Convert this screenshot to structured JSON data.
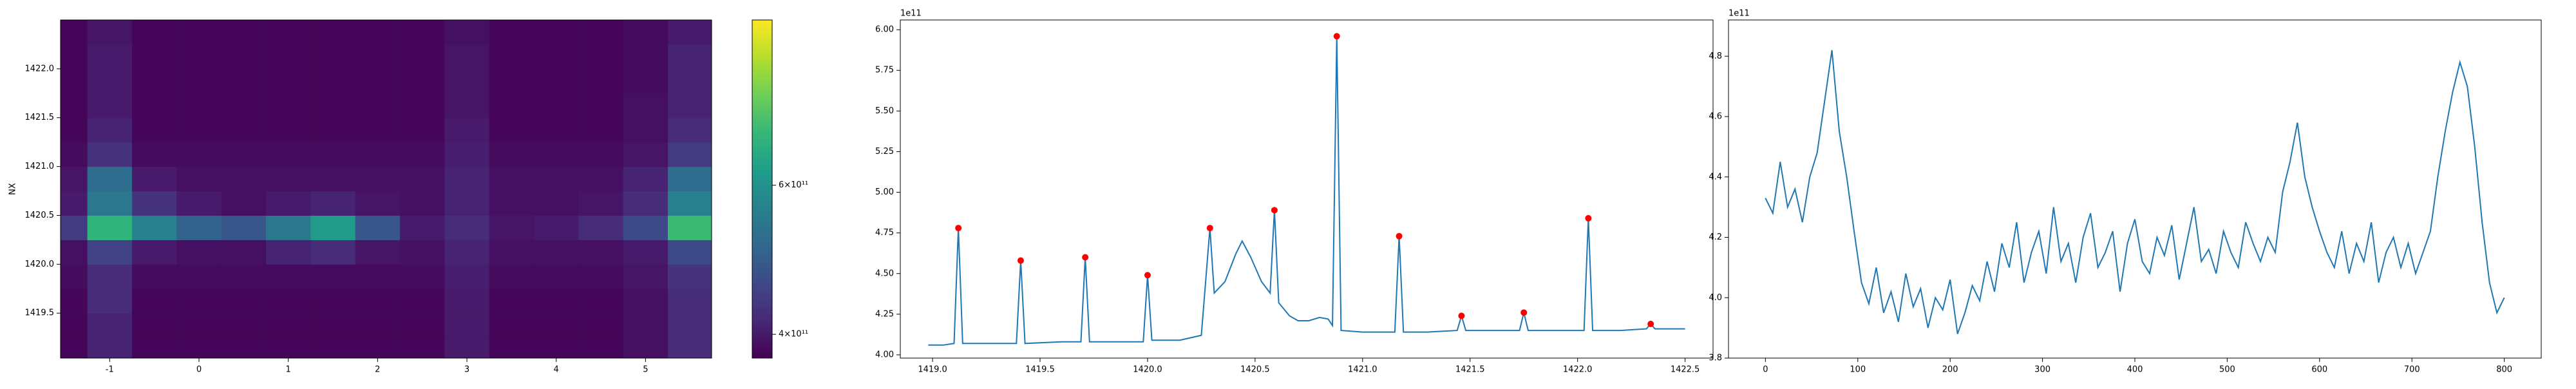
{
  "chart_data": [
    {
      "type": "heatmap",
      "ylabel": "NX",
      "colormap": "viridis",
      "x": [
        -1.5,
        -1.0,
        -0.5,
        0.0,
        0.5,
        1.0,
        1.5,
        2.0,
        2.5,
        3.0,
        3.5,
        4.0,
        4.5,
        5.0,
        5.5
      ],
      "y": [
        1419.125,
        1419.375,
        1419.625,
        1419.875,
        1420.125,
        1420.375,
        1420.625,
        1420.875,
        1421.125,
        1421.375,
        1421.625,
        1421.875,
        1422.125,
        1422.375
      ],
      "z": [
        [
          380000000000.0,
          410000000000.0,
          380000000000.0,
          380000000000.0,
          380000000000.0,
          380000000000.0,
          380000000000.0,
          380000000000.0,
          380000000000.0,
          400000000000.0,
          380000000000.0,
          380000000000.0,
          380000000000.0,
          390000000000.0,
          420000000000.0
        ],
        [
          380000000000.0,
          410000000000.0,
          380000000000.0,
          380000000000.0,
          380000000000.0,
          380000000000.0,
          380000000000.0,
          380000000000.0,
          380000000000.0,
          400000000000.0,
          380000000000.0,
          380000000000.0,
          380000000000.0,
          390000000000.0,
          420000000000.0
        ],
        [
          380000000000.0,
          420000000000.0,
          380000000000.0,
          380000000000.0,
          380000000000.0,
          380000000000.0,
          380000000000.0,
          380000000000.0,
          380000000000.0,
          400000000000.0,
          380000000000.0,
          380000000000.0,
          380000000000.0,
          390000000000.0,
          420000000000.0
        ],
        [
          385000000000.0,
          420000000000.0,
          385000000000.0,
          385000000000.0,
          385000000000.0,
          385000000000.0,
          385000000000.0,
          385000000000.0,
          385000000000.0,
          405000000000.0,
          385000000000.0,
          385000000000.0,
          385000000000.0,
          395000000000.0,
          430000000000.0
        ],
        [
          390000000000.0,
          450000000000.0,
          400000000000.0,
          390000000000.0,
          390000000000.0,
          410000000000.0,
          420000000000.0,
          395000000000.0,
          390000000000.0,
          410000000000.0,
          390000000000.0,
          390000000000.0,
          390000000000.0,
          400000000000.0,
          460000000000.0
        ],
        [
          440000000000.0,
          680000000000.0,
          560000000000.0,
          500000000000.0,
          480000000000.0,
          540000000000.0,
          620000000000.0,
          480000000000.0,
          400000000000.0,
          420000000000.0,
          395000000000.0,
          400000000000.0,
          420000000000.0,
          460000000000.0,
          700000000000.0
        ],
        [
          400000000000.0,
          540000000000.0,
          430000000000.0,
          400000000000.0,
          390000000000.0,
          400000000000.0,
          410000000000.0,
          395000000000.0,
          390000000000.0,
          410000000000.0,
          390000000000.0,
          390000000000.0,
          395000000000.0,
          420000000000.0,
          560000000000.0
        ],
        [
          395000000000.0,
          520000000000.0,
          400000000000.0,
          390000000000.0,
          390000000000.0,
          390000000000.0,
          390000000000.0,
          390000000000.0,
          390000000000.0,
          410000000000.0,
          390000000000.0,
          390000000000.0,
          390000000000.0,
          410000000000.0,
          520000000000.0
        ],
        [
          385000000000.0,
          430000000000.0,
          385000000000.0,
          385000000000.0,
          385000000000.0,
          385000000000.0,
          385000000000.0,
          385000000000.0,
          385000000000.0,
          405000000000.0,
          385000000000.0,
          385000000000.0,
          385000000000.0,
          395000000000.0,
          440000000000.0
        ],
        [
          380000000000.0,
          410000000000.0,
          380000000000.0,
          380000000000.0,
          380000000000.0,
          380000000000.0,
          380000000000.0,
          380000000000.0,
          380000000000.0,
          400000000000.0,
          380000000000.0,
          380000000000.0,
          380000000000.0,
          390000000000.0,
          420000000000.0
        ],
        [
          380000000000.0,
          400000000000.0,
          380000000000.0,
          380000000000.0,
          380000000000.0,
          380000000000.0,
          380000000000.0,
          380000000000.0,
          380000000000.0,
          395000000000.0,
          380000000000.0,
          380000000000.0,
          380000000000.0,
          390000000000.0,
          410000000000.0
        ],
        [
          380000000000.0,
          400000000000.0,
          380000000000.0,
          380000000000.0,
          380000000000.0,
          380000000000.0,
          380000000000.0,
          380000000000.0,
          380000000000.0,
          395000000000.0,
          380000000000.0,
          380000000000.0,
          380000000000.0,
          385000000000.0,
          410000000000.0
        ],
        [
          380000000000.0,
          400000000000.0,
          380000000000.0,
          380000000000.0,
          380000000000.0,
          380000000000.0,
          380000000000.0,
          380000000000.0,
          380000000000.0,
          395000000000.0,
          380000000000.0,
          380000000000.0,
          380000000000.0,
          385000000000.0,
          410000000000.0
        ],
        [
          380000000000.0,
          395000000000.0,
          380000000000.0,
          380000000000.0,
          380000000000.0,
          380000000000.0,
          380000000000.0,
          380000000000.0,
          380000000000.0,
          390000000000.0,
          380000000000.0,
          380000000000.0,
          380000000000.0,
          385000000000.0,
          400000000000.0
        ]
      ],
      "xlim": [
        -1.55,
        5.74
      ],
      "xticks": [
        -1,
        0,
        1,
        2,
        3,
        4,
        5
      ],
      "ylim": [
        1419.04,
        1422.5
      ],
      "yticks": [
        1419.5,
        {
          "value": 1420,
          "label": "1420.0"
        },
        1420.5,
        {
          "value": 1421,
          "label": "1421.0"
        },
        1421.5,
        {
          "value": 1422,
          "label": "1422.0"
        }
      ],
      "colorbar": {
        "scale": "log",
        "lim": [
          375000000000.0,
          940000000000.0
        ],
        "ticks": [
          {
            "value": 400000000000.0,
            "label": "4×10¹¹"
          },
          {
            "value": 600000000000.0,
            "label": "6×10¹¹"
          }
        ]
      }
    },
    {
      "type": "line",
      "offset_label": "1e11",
      "series": [
        {
          "color": "#1f77b4",
          "mode": "line",
          "x": [
            1418.98,
            1419.05,
            1419.1,
            1419.12,
            1419.14,
            1419.3,
            1419.39,
            1419.41,
            1419.43,
            1419.6,
            1419.69,
            1419.71,
            1419.73,
            1419.9,
            1419.98,
            1420.0,
            1420.02,
            1420.15,
            1420.25,
            1420.29,
            1420.31,
            1420.36,
            1420.41,
            1420.44,
            1420.48,
            1420.53,
            1420.57,
            1420.59,
            1420.61,
            1420.66,
            1420.7,
            1420.75,
            1420.8,
            1420.84,
            1420.86,
            1420.88,
            1420.9,
            1421.0,
            1421.15,
            1421.17,
            1421.19,
            1421.3,
            1421.44,
            1421.46,
            1421.48,
            1421.6,
            1421.73,
            1421.75,
            1421.77,
            1421.9,
            1422.03,
            1422.05,
            1422.07,
            1422.2,
            1422.32,
            1422.34,
            1422.36,
            1422.5
          ],
          "values": [
            4.06,
            4.06,
            4.07,
            4.78,
            4.07,
            4.07,
            4.07,
            4.58,
            4.07,
            4.08,
            4.08,
            4.6,
            4.08,
            4.08,
            4.08,
            4.49,
            4.09,
            4.09,
            4.12,
            4.78,
            4.38,
            4.45,
            4.62,
            4.7,
            4.6,
            4.45,
            4.38,
            4.89,
            4.32,
            4.24,
            4.21,
            4.21,
            4.23,
            4.22,
            4.18,
            5.96,
            4.15,
            4.14,
            4.14,
            4.73,
            4.14,
            4.14,
            4.15,
            4.24,
            4.15,
            4.15,
            4.15,
            4.26,
            4.15,
            4.15,
            4.15,
            4.84,
            4.15,
            4.15,
            4.16,
            4.19,
            4.16,
            4.16
          ]
        },
        {
          "color": "#ff0000",
          "mode": "markers",
          "x": [
            1419.12,
            1419.41,
            1419.71,
            1420.0,
            1420.29,
            1420.59,
            1420.88,
            1421.17,
            1421.46,
            1421.75,
            1422.05,
            1422.34
          ],
          "values": [
            4.78,
            4.58,
            4.6,
            4.49,
            4.78,
            4.89,
            5.96,
            4.73,
            4.24,
            4.26,
            4.84,
            4.19
          ]
        }
      ],
      "xlim": [
        1418.85,
        1422.63
      ],
      "xticks": [
        {
          "value": 1419,
          "label": "1419.0"
        },
        1419.5,
        {
          "value": 1420,
          "label": "1420.0"
        },
        1420.5,
        {
          "value": 1421,
          "label": "1421.0"
        },
        1421.5,
        {
          "value": 1422,
          "label": "1422.0"
        },
        1422.5
      ],
      "ylim": [
        3.98,
        6.06
      ],
      "yticks": [
        {
          "value": 4,
          "label": "4.00"
        },
        4.25,
        {
          "value": 4.5,
          "label": "4.50"
        },
        4.75,
        {
          "value": 5,
          "label": "5.00"
        },
        5.25,
        {
          "value": 5.5,
          "label": "5.50"
        },
        5.75,
        {
          "value": 6,
          "label": "6.00"
        }
      ]
    },
    {
      "type": "line",
      "offset_label": "1e11",
      "series": [
        {
          "color": "#1f77b4",
          "mode": "line",
          "x": [
            0,
            8,
            16,
            24,
            32,
            40,
            48,
            56,
            64,
            72,
            80,
            88,
            96,
            104,
            112,
            120,
            128,
            136,
            144,
            152,
            160,
            168,
            176,
            184,
            192,
            200,
            208,
            216,
            224,
            232,
            240,
            248,
            256,
            264,
            272,
            280,
            288,
            296,
            304,
            312,
            320,
            328,
            336,
            344,
            352,
            360,
            368,
            376,
            384,
            392,
            400,
            408,
            416,
            424,
            432,
            440,
            448,
            456,
            464,
            472,
            480,
            488,
            496,
            504,
            512,
            520,
            528,
            536,
            544,
            552,
            560,
            568,
            576,
            584,
            592,
            600,
            608,
            616,
            624,
            632,
            640,
            648,
            656,
            664,
            672,
            680,
            688,
            696,
            704,
            712,
            720,
            728,
            736,
            744,
            752,
            760,
            768,
            776,
            784,
            792,
            800
          ],
          "values": [
            4.33,
            4.28,
            4.45,
            4.3,
            4.36,
            4.25,
            4.4,
            4.48,
            4.65,
            4.82,
            4.55,
            4.4,
            4.22,
            4.05,
            3.98,
            4.1,
            3.95,
            4.02,
            3.92,
            4.08,
            3.97,
            4.03,
            3.9,
            4.0,
            3.96,
            4.06,
            3.88,
            3.95,
            4.04,
            3.99,
            4.12,
            4.02,
            4.18,
            4.1,
            4.25,
            4.05,
            4.15,
            4.22,
            4.08,
            4.3,
            4.12,
            4.18,
            4.05,
            4.2,
            4.28,
            4.1,
            4.15,
            4.22,
            4.02,
            4.18,
            4.26,
            4.12,
            4.08,
            4.2,
            4.14,
            4.24,
            4.06,
            4.18,
            4.3,
            4.12,
            4.16,
            4.08,
            4.22,
            4.15,
            4.1,
            4.25,
            4.18,
            4.12,
            4.2,
            4.15,
            4.35,
            4.45,
            4.58,
            4.4,
            4.3,
            4.22,
            4.15,
            4.1,
            4.22,
            4.08,
            4.18,
            4.12,
            4.25,
            4.05,
            4.15,
            4.2,
            4.1,
            4.18,
            4.08,
            4.15,
            4.22,
            4.4,
            4.55,
            4.68,
            4.78,
            4.7,
            4.5,
            4.25,
            4.05,
            3.95,
            4.0
          ]
        }
      ],
      "xlim": [
        -40,
        840
      ],
      "xticks": [
        0,
        100,
        200,
        300,
        400,
        500,
        600,
        700,
        800
      ],
      "ylim": [
        3.8,
        4.92
      ],
      "yticks": [
        3.8,
        {
          "value": 4,
          "label": "4.0"
        },
        4.2,
        4.4,
        4.6,
        4.8
      ]
    }
  ]
}
